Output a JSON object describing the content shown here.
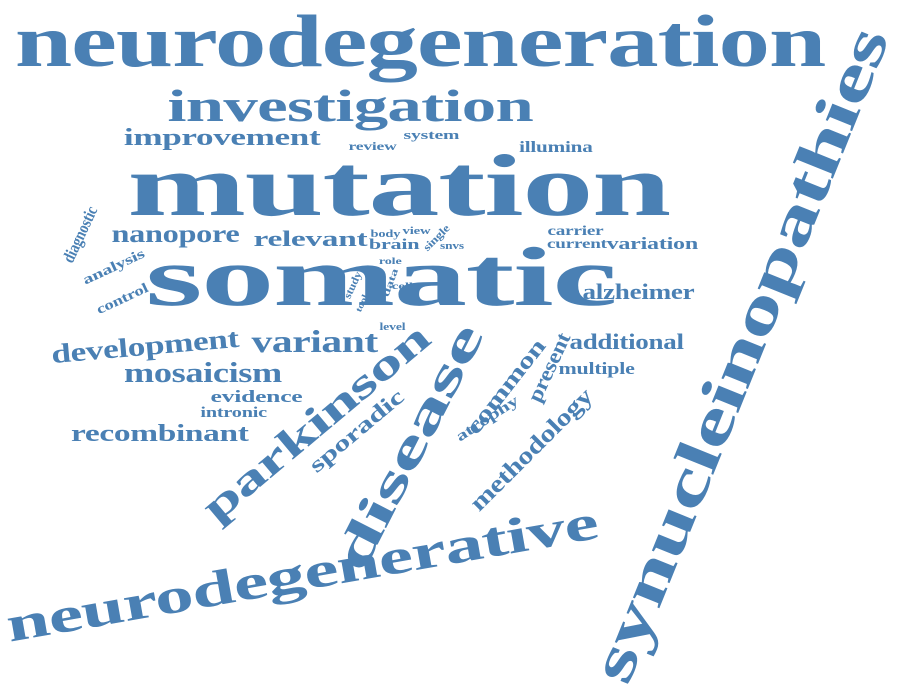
{
  "color": "#4a80b4",
  "words": [
    {
      "text": "neurodegeneration"
    },
    {
      "text": "synucleinopathies"
    },
    {
      "text": "investigation"
    },
    {
      "text": "improvement"
    },
    {
      "text": "review"
    },
    {
      "text": "system"
    },
    {
      "text": "illumina"
    },
    {
      "text": "mutation"
    },
    {
      "text": "diagnostic"
    },
    {
      "text": "nanopore"
    },
    {
      "text": "relevant"
    },
    {
      "text": "body"
    },
    {
      "text": "view"
    },
    {
      "text": "brain"
    },
    {
      "text": "single"
    },
    {
      "text": "snvs"
    },
    {
      "text": "carrier"
    },
    {
      "text": "current"
    },
    {
      "text": "variation"
    },
    {
      "text": "analysis"
    },
    {
      "text": "somatic"
    },
    {
      "text": "role"
    },
    {
      "text": "data"
    },
    {
      "text": "cell"
    },
    {
      "text": "study"
    },
    {
      "text": "tool"
    },
    {
      "text": "control"
    },
    {
      "text": "alzheimer"
    },
    {
      "text": "level"
    },
    {
      "text": "development"
    },
    {
      "text": "variant"
    },
    {
      "text": "additional"
    },
    {
      "text": "parkinson"
    },
    {
      "text": "disease"
    },
    {
      "text": "common"
    },
    {
      "text": "present"
    },
    {
      "text": "multiple"
    },
    {
      "text": "mosaicism"
    },
    {
      "text": "evidence"
    },
    {
      "text": "intronic"
    },
    {
      "text": "sporadic"
    },
    {
      "text": "atrophy"
    },
    {
      "text": "methodology"
    },
    {
      "text": "recombinant"
    },
    {
      "text": "neurodegenerative"
    }
  ]
}
